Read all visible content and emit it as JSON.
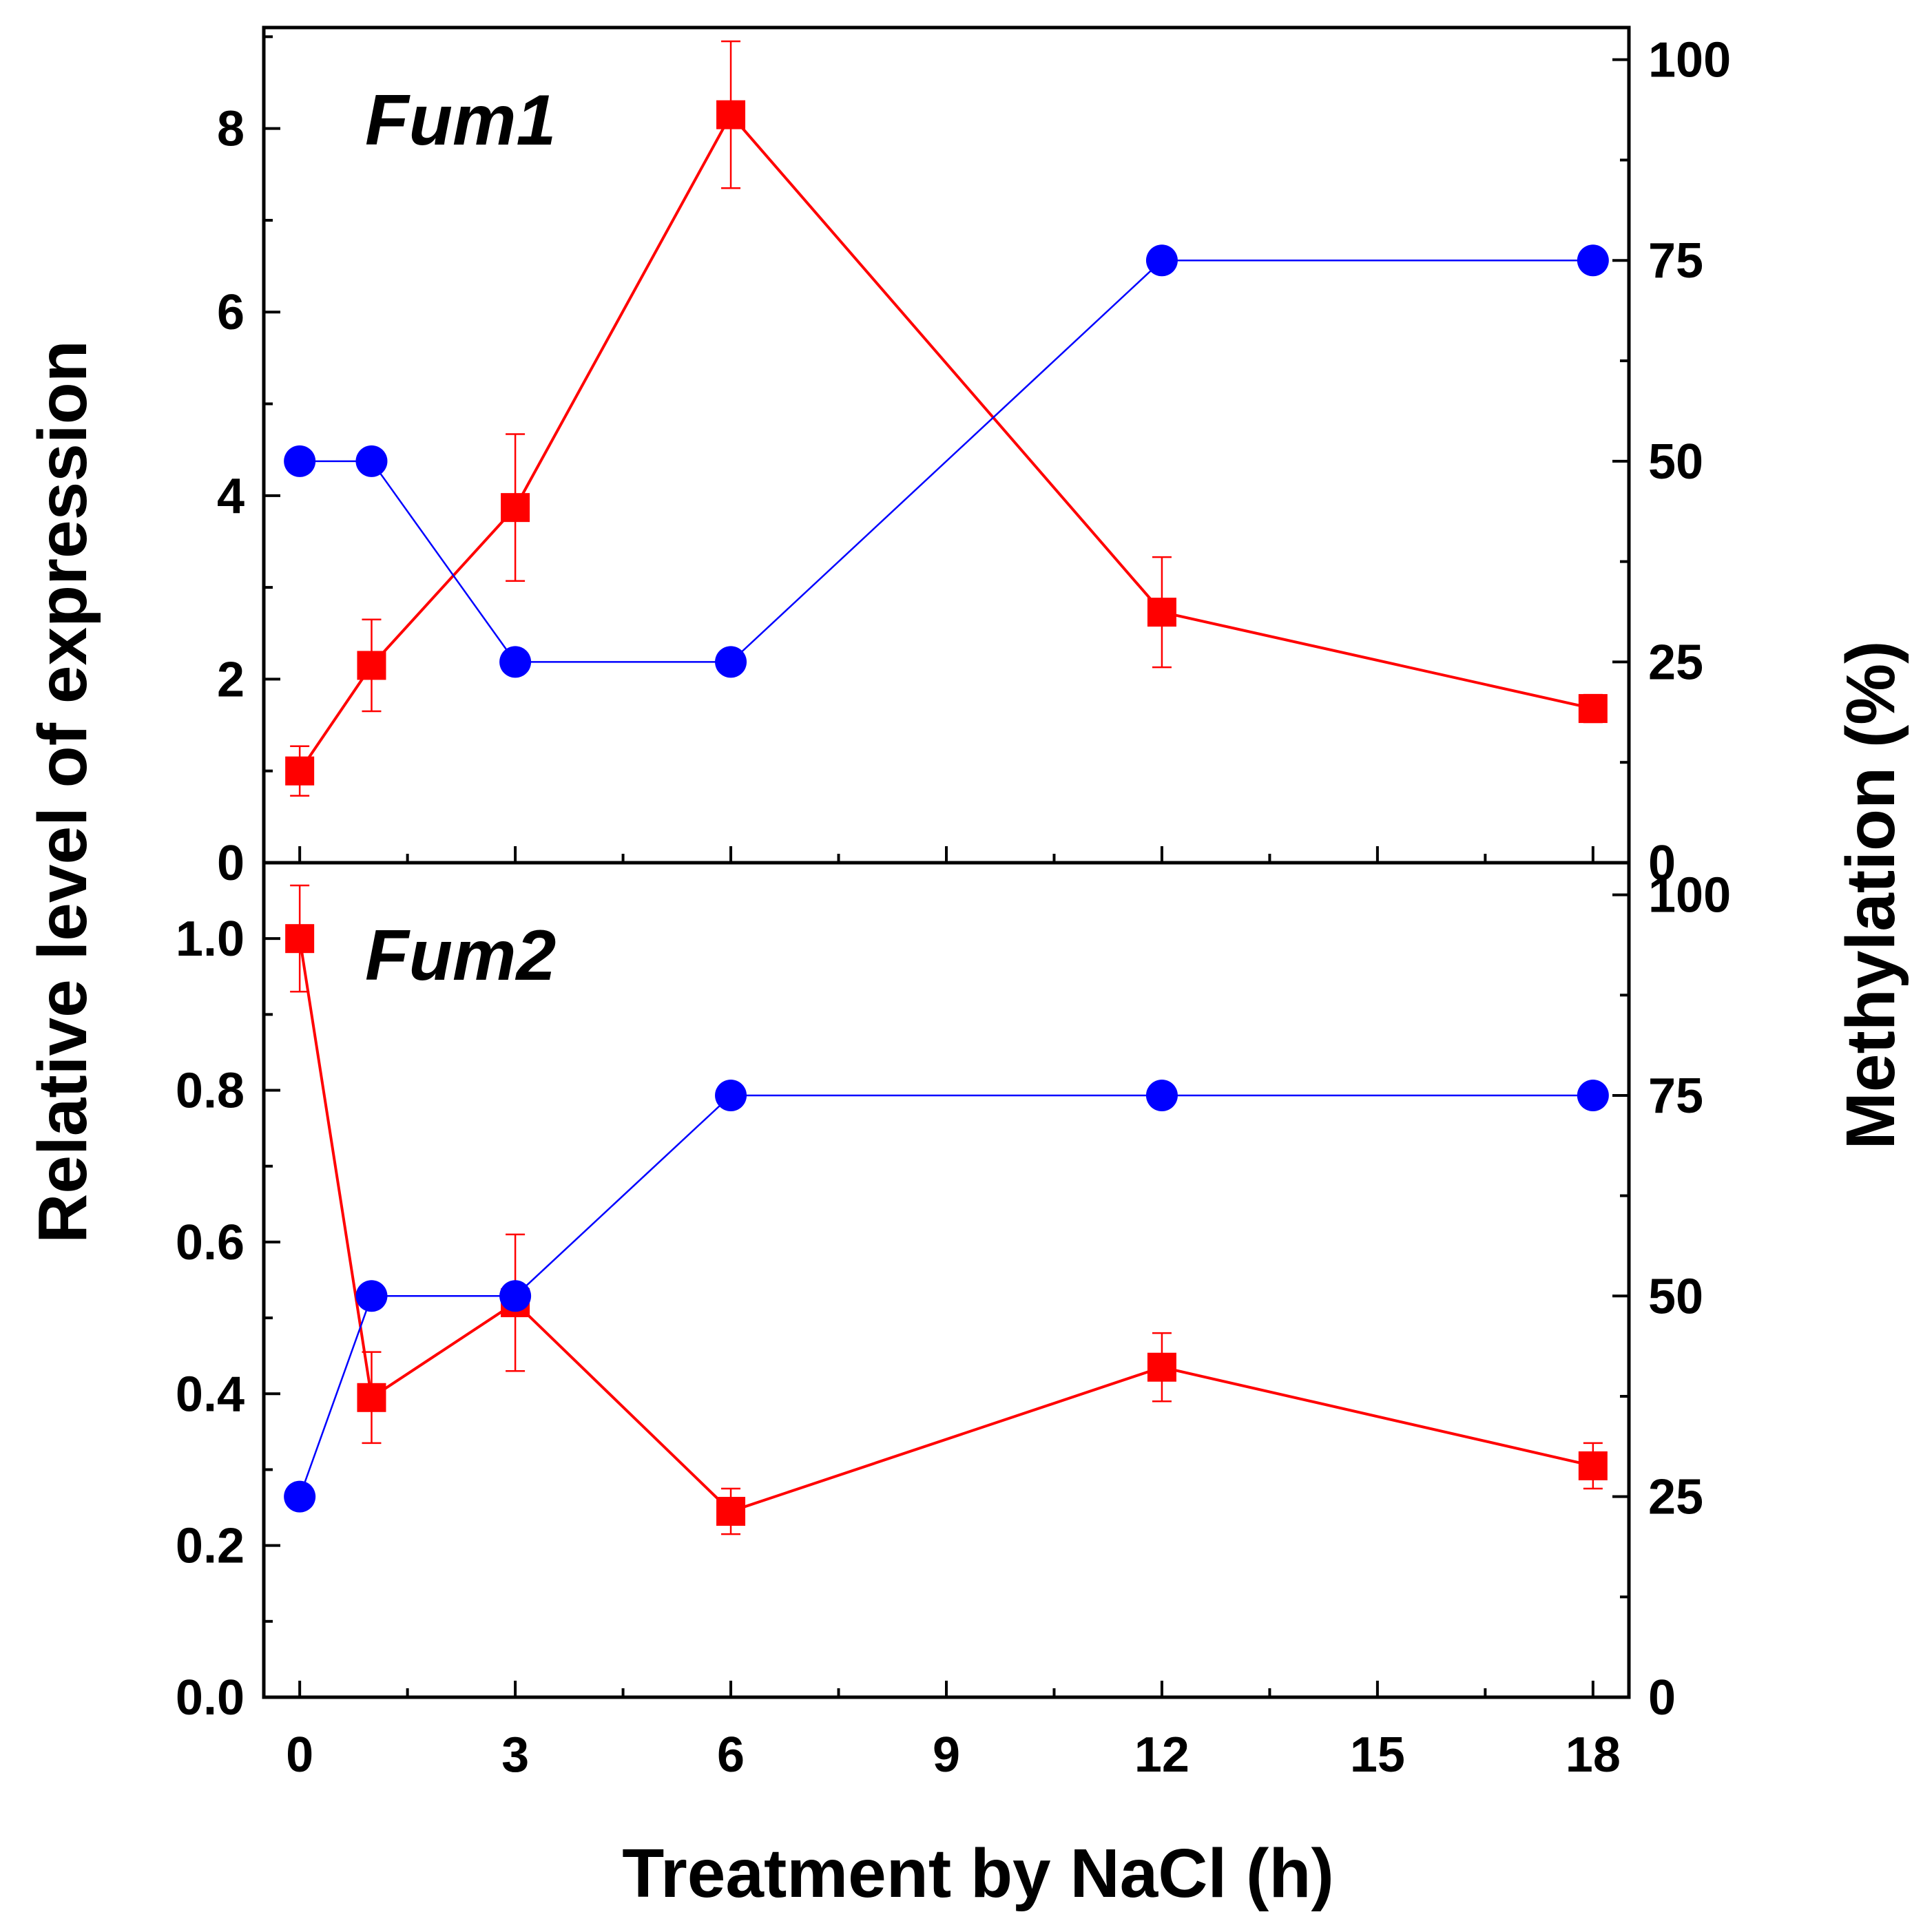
{
  "chart_data": {
    "type": "line",
    "xlabel": "Treatment by NaCl (h)",
    "ylabel": "Relative level of expression",
    "y2label": "Methylation (%)",
    "xlim": [
      -0.5,
      18.5
    ],
    "xticks": [
      0,
      3,
      6,
      9,
      12,
      15,
      18
    ],
    "y2lim": [
      0,
      104
    ],
    "y2ticks": [
      0,
      25,
      50,
      75,
      100
    ],
    "colors": {
      "expression": "#ff0000",
      "methylation": "#0000ff",
      "axes": "#000000"
    },
    "panels": [
      {
        "label": "Fum1",
        "ylim": [
          0,
          9.1
        ],
        "yticks": [
          0,
          2,
          4,
          6,
          8
        ],
        "yticklabels": [
          "0",
          "2",
          "4",
          "6",
          "8"
        ],
        "series": [
          {
            "name": "Relative level of expression",
            "axis": "left",
            "marker": "square",
            "color": "#ff0000",
            "x": [
              0,
              1,
              3,
              6,
              12,
              18
            ],
            "y": [
              1.0,
              2.15,
              3.87,
              8.15,
              2.73,
              1.68
            ],
            "err": [
              0.27,
              0.5,
              0.8,
              0.8,
              0.6,
              0.15
            ]
          },
          {
            "name": "Methylation (%)",
            "axis": "right",
            "marker": "circle",
            "color": "#0000ff",
            "x": [
              0,
              1,
              3,
              6,
              12,
              18
            ],
            "y": [
              50,
              50,
              25,
              25,
              75,
              75
            ]
          }
        ]
      },
      {
        "label": "Fum2",
        "ylim": [
          0,
          1.1
        ],
        "yticks": [
          0,
          0.2,
          0.4,
          0.6,
          0.8,
          1.0
        ],
        "yticklabels": [
          "0.0",
          "0.2",
          "0.4",
          "0.6",
          "0.8",
          "1.0"
        ],
        "series": [
          {
            "name": "Relative level of expression",
            "axis": "left",
            "marker": "square",
            "color": "#ff0000",
            "x": [
              0,
              1,
              3,
              6,
              12,
              18
            ],
            "y": [
              1.0,
              0.395,
              0.52,
              0.245,
              0.435,
              0.305
            ],
            "err": [
              0.07,
              0.06,
              0.09,
              0.03,
              0.045,
              0.03
            ]
          },
          {
            "name": "Methylation (%)",
            "axis": "right",
            "marker": "circle",
            "color": "#0000ff",
            "x": [
              0,
              1,
              3,
              6,
              12,
              18
            ],
            "y": [
              25,
              50,
              50,
              75,
              75,
              75
            ]
          }
        ]
      }
    ]
  }
}
